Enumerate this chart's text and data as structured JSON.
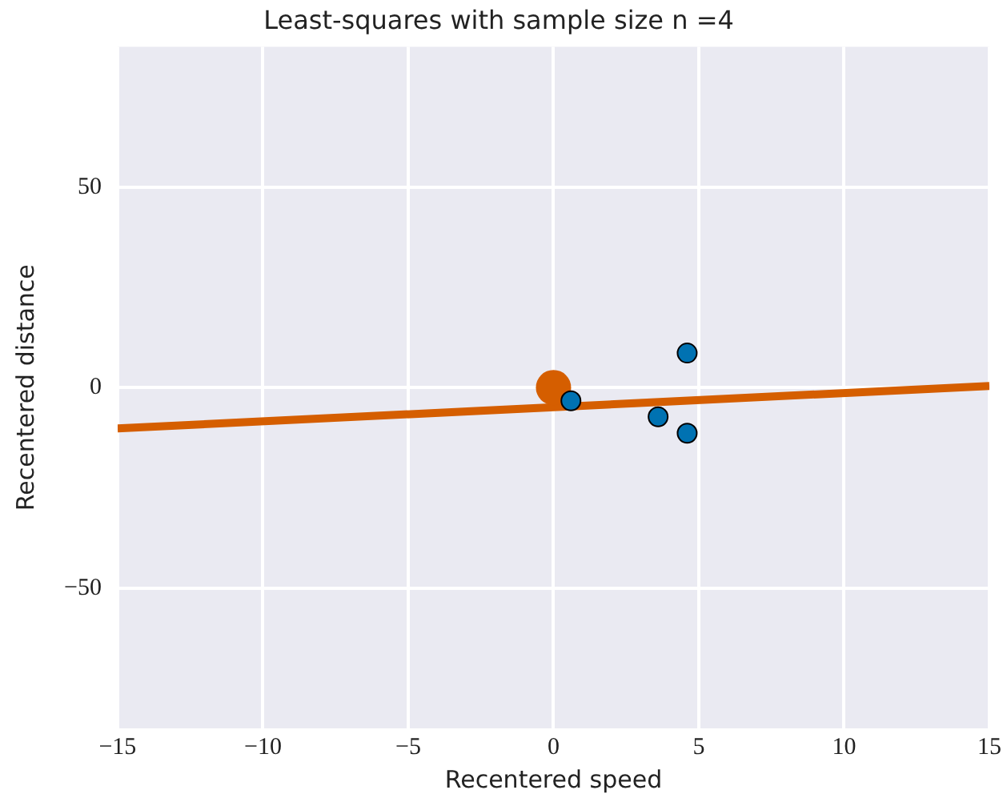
{
  "chart_data": {
    "type": "scatter",
    "title": "Least-squares with sample size n =4",
    "xlabel": "Recentered speed",
    "ylabel": "Recentered distance",
    "xlim": [
      -15,
      15
    ],
    "ylim": [
      -85,
      85
    ],
    "xticks": [
      {
        "value": -15,
        "label": "−15"
      },
      {
        "value": -10,
        "label": "−10"
      },
      {
        "value": -5,
        "label": "−5"
      },
      0,
      5,
      10,
      15
    ],
    "yticks": [
      {
        "value": -50,
        "label": "−50"
      },
      0,
      50
    ],
    "grid": true,
    "legend": false,
    "marker": "circle",
    "series": [
      {
        "type": "line",
        "color": "#d55e00",
        "x": [
          -15,
          15
        ],
        "values": [
          -10.2,
          0.4
        ],
        "marker": "none"
      },
      {
        "color": "#d55e00",
        "x": [
          0
        ],
        "values": [
          0
        ]
      },
      {
        "color": "#0072b2",
        "x": [
          0.6,
          3.6,
          4.6,
          4.6
        ],
        "values": [
          -3.3,
          -7.3,
          8.6,
          -11.4
        ]
      }
    ]
  }
}
